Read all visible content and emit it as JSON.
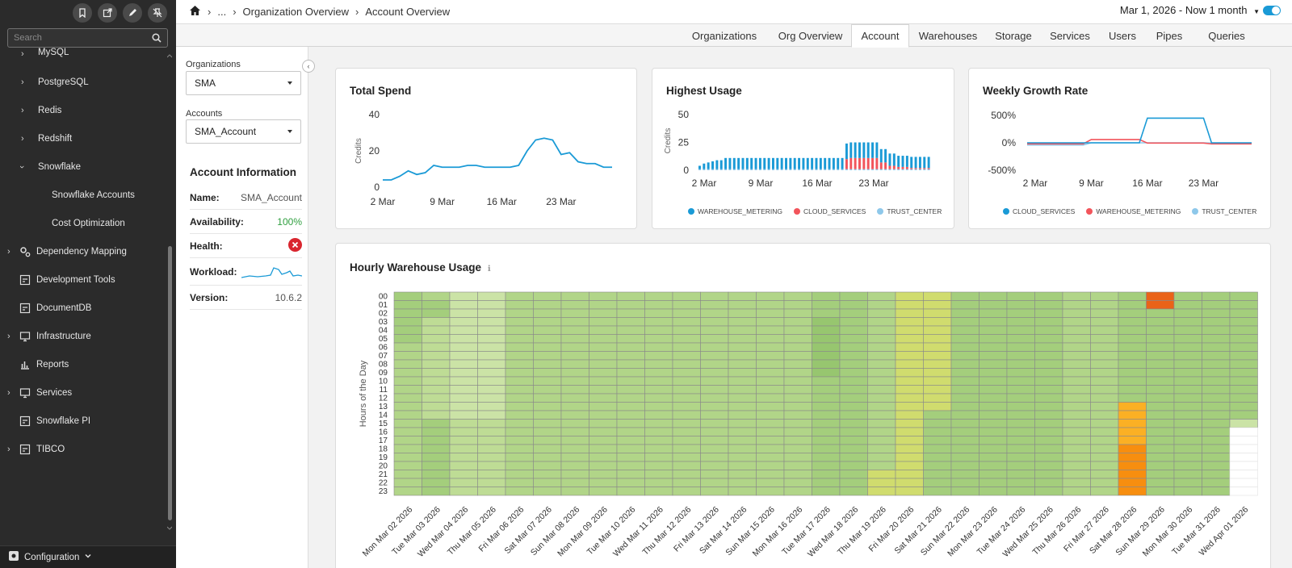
{
  "sidebar": {
    "search_placeholder": "Search",
    "items": [
      {
        "label": "MySQL"
      },
      {
        "label": "PostgreSQL"
      },
      {
        "label": "Redis"
      },
      {
        "label": "Redshift"
      },
      {
        "label": "Snowflake"
      },
      {
        "label": "Snowflake Accounts"
      },
      {
        "label": "Cost Optimization"
      },
      {
        "label": "Dependency Mapping"
      },
      {
        "label": "Development Tools"
      },
      {
        "label": "DocumentDB"
      },
      {
        "label": "Infrastructure"
      },
      {
        "label": "Reports"
      },
      {
        "label": "Services"
      },
      {
        "label": "Snowflake PI"
      },
      {
        "label": "TIBCO"
      }
    ],
    "config_label": "Configuration"
  },
  "breadcrumb": {
    "ellipsis": "...",
    "items": [
      "Organization Overview",
      "Account Overview"
    ]
  },
  "date_range": "Mar 1, 2026 - Now 1 month",
  "tabs": [
    "Organizations",
    "Org Overview",
    "Account",
    "Warehouses",
    "Storage",
    "Services",
    "Users",
    "Pipes",
    "Queries"
  ],
  "active_tab": "Account",
  "filters": {
    "org_label": "Organizations",
    "org_value": "SMA",
    "acct_label": "Accounts",
    "acct_value": "SMA_Account"
  },
  "account_info": {
    "title": "Account Information",
    "name_label": "Name:",
    "name_value": "SMA_Account",
    "availability_label": "Availability:",
    "availability_value": "100%",
    "health_label": "Health:",
    "workload_label": "Workload:",
    "version_label": "Version:",
    "version_value": "10.6.2"
  },
  "colors": {
    "accent": "#1a9ad6",
    "red": "#f2545b",
    "lightblue": "#8ec8ea",
    "ok": "#2e9e3e",
    "error": "#d9262f"
  },
  "chart_data": [
    {
      "type": "line",
      "title": "Total Spend",
      "ylabel": "Credits",
      "ylim": [
        0,
        40
      ],
      "yticks": [
        0,
        20,
        40
      ],
      "xticks": [
        "2 Mar",
        "9 Mar",
        "16 Mar",
        "23 Mar"
      ],
      "x": [
        2,
        3,
        4,
        5,
        6,
        7,
        8,
        9,
        10,
        11,
        12,
        13,
        14,
        15,
        16,
        17,
        18,
        19,
        20,
        21,
        22,
        23,
        24,
        25,
        26,
        27,
        28,
        29
      ],
      "values": [
        4,
        4,
        6,
        9,
        7,
        8,
        12,
        11,
        11,
        11,
        12,
        12,
        11,
        11,
        11,
        11,
        12,
        20,
        26,
        27,
        26,
        18,
        19,
        14,
        13,
        13,
        11,
        11
      ]
    },
    {
      "type": "bar",
      "title": "Highest Usage",
      "ylabel": "Credits",
      "ylim": [
        0,
        50
      ],
      "yticks": [
        0,
        25,
        50
      ],
      "xticks": [
        "2 Mar",
        "9 Mar",
        "16 Mar",
        "23 Mar"
      ],
      "legend": [
        "WAREHOUSE_METERING",
        "CLOUD_SERVICES",
        "TRUST_CENTER"
      ],
      "series": [
        {
          "name": "WAREHOUSE_METERING",
          "values": [
            3,
            5,
            6,
            7,
            8,
            8,
            10,
            10,
            10,
            10,
            10,
            10,
            10,
            10,
            10,
            10,
            10,
            10,
            10,
            10,
            10,
            10,
            10,
            10,
            10,
            10,
            10,
            10,
            10,
            10,
            10,
            10,
            10,
            10,
            14,
            14,
            14,
            14,
            14,
            14,
            14,
            14,
            12,
            12,
            11,
            11,
            10,
            10,
            10,
            10,
            10,
            10,
            10,
            10
          ]
        },
        {
          "name": "CLOUD_SERVICES",
          "values": [
            0,
            0,
            0,
            0,
            0,
            0,
            0,
            0,
            0,
            0,
            0,
            0,
            0,
            0,
            0,
            0,
            0,
            0,
            0,
            0,
            0,
            0,
            0,
            0,
            0,
            0,
            0,
            0,
            0,
            0,
            0,
            0,
            0,
            0,
            9,
            10,
            10,
            10,
            10,
            10,
            10,
            10,
            6,
            6,
            3,
            3,
            2,
            2,
            2,
            1,
            1,
            1,
            1,
            1
          ]
        },
        {
          "name": "TRUST_CENTER",
          "values": [
            1,
            1,
            1,
            1,
            1,
            1,
            1,
            1,
            1,
            1,
            1,
            1,
            1,
            1,
            1,
            1,
            1,
            1,
            1,
            1,
            1,
            1,
            1,
            1,
            1,
            1,
            1,
            1,
            1,
            1,
            1,
            1,
            1,
            1,
            1,
            1,
            1,
            1,
            1,
            1,
            1,
            1,
            1,
            1,
            1,
            1,
            1,
            1,
            1,
            1,
            1,
            1,
            1,
            1
          ]
        }
      ]
    },
    {
      "type": "line",
      "title": "Weekly Growth Rate",
      "ylim": [
        -500,
        500
      ],
      "yticks": [
        "500%",
        "0%",
        "-500%"
      ],
      "xticks": [
        "2 Mar",
        "9 Mar",
        "16 Mar",
        "23 Mar"
      ],
      "legend": [
        "CLOUD_SERVICES",
        "WAREHOUSE_METERING",
        "TRUST_CENTER"
      ],
      "x": [
        1,
        2,
        3,
        4,
        5,
        6,
        7,
        8,
        9,
        10,
        11,
        12,
        13,
        14,
        15,
        16,
        17,
        18,
        19,
        20,
        21,
        22,
        23,
        24,
        25,
        26,
        27,
        28,
        29
      ],
      "series": [
        {
          "name": "CLOUD_SERVICES",
          "values": [
            0,
            0,
            0,
            0,
            0,
            0,
            0,
            0,
            0,
            0,
            0,
            0,
            0,
            0,
            0,
            450,
            450,
            450,
            450,
            450,
            450,
            450,
            450,
            0,
            0,
            0,
            0,
            0,
            0
          ]
        },
        {
          "name": "WAREHOUSE_METERING",
          "values": [
            -20,
            -20,
            -20,
            -20,
            -20,
            -20,
            -20,
            -20,
            60,
            60,
            60,
            60,
            60,
            60,
            60,
            -5,
            -5,
            -5,
            -5,
            -5,
            -5,
            -5,
            -5,
            -20,
            -20,
            -20,
            -20,
            -20,
            -20
          ]
        },
        {
          "name": "TRUST_CENTER",
          "values": [
            -40,
            -40,
            -40,
            -40,
            -40,
            -40,
            -40,
            -40,
            0,
            0,
            0,
            0,
            0,
            0,
            0,
            0,
            0,
            0,
            0,
            0,
            0,
            0,
            0,
            -5,
            -5,
            -5,
            -5,
            -5,
            -5
          ]
        }
      ]
    },
    {
      "type": "heatmap",
      "title": "Hourly Warehouse Usage",
      "ylabel": "Hours of the Day",
      "y": [
        "00",
        "01",
        "02",
        "03",
        "04",
        "05",
        "06",
        "07",
        "08",
        "09",
        "10",
        "11",
        "12",
        "13",
        "14",
        "15",
        "16",
        "17",
        "18",
        "19",
        "20",
        "21",
        "22",
        "23"
      ],
      "x": [
        "Mon Mar 02 2026",
        "Tue Mar 03 2026",
        "Wed Mar 04 2026",
        "Thu Mar 05 2026",
        "Fri Mar 06 2026",
        "Sat Mar 07 2026",
        "Sun Mar 08 2026",
        "Mon Mar 09 2026",
        "Tue Mar 10 2026",
        "Wed Mar 11 2026",
        "Thu Mar 12 2026",
        "Fri Mar 13 2026",
        "Sat Mar 14 2026",
        "Sun Mar 15 2026",
        "Mon Mar 16 2026",
        "Tue Mar 17 2026",
        "Wed Mar 18 2026",
        "Thu Mar 19 2026",
        "Fri Mar 20 2026",
        "Sat Mar 21 2026",
        "Sun Mar 22 2026",
        "Mon Mar 23 2026",
        "Tue Mar 24 2026",
        "Wed Mar 25 2026",
        "Thu Mar 26 2026",
        "Fri Mar 27 2026",
        "Sat Mar 28 2026",
        "Sun Mar 29 2026",
        "Mon Mar 30 2026",
        "Tue Mar 31 2026",
        "Wed Apr 01 2026"
      ],
      "day_levels": [
        2,
        3,
        1,
        1,
        2,
        2,
        2,
        2,
        2,
        2,
        2,
        2,
        2,
        2,
        2,
        3,
        3,
        3,
        5,
        5,
        3,
        3,
        3,
        3,
        2,
        2,
        3,
        3,
        3,
        3,
        3
      ],
      "overrides": [
        {
          "day": 0,
          "from": 0,
          "to": 5,
          "level": 3
        },
        {
          "day": 1,
          "from": 0,
          "to": 0,
          "level": 2
        },
        {
          "day": 1,
          "from": 3,
          "to": 14,
          "level": 1
        },
        {
          "day": 2,
          "from": 0,
          "to": 14,
          "level": 0
        },
        {
          "day": 3,
          "from": 0,
          "to": 14,
          "level": 0
        },
        {
          "day": 15,
          "from": 3,
          "to": 9,
          "level": 4
        },
        {
          "day": 17,
          "from": 0,
          "to": 20,
          "level": 2
        },
        {
          "day": 17,
          "from": 21,
          "to": 23,
          "level": 5
        },
        {
          "day": 19,
          "from": 14,
          "to": 23,
          "level": 3
        },
        {
          "day": 26,
          "from": 0,
          "to": 12,
          "level": 3
        },
        {
          "day": 26,
          "from": 13,
          "to": 17,
          "level": 7
        },
        {
          "day": 26,
          "from": 18,
          "to": 23,
          "level": 8
        },
        {
          "day": 27,
          "from": 0,
          "to": 1,
          "level": 9
        },
        {
          "day": 27,
          "from": 2,
          "to": 23,
          "level": 3
        },
        {
          "day": 30,
          "from": 15,
          "to": 15,
          "level": 0
        },
        {
          "day": 30,
          "from": 16,
          "to": 23,
          "level": -1
        }
      ]
    }
  ]
}
